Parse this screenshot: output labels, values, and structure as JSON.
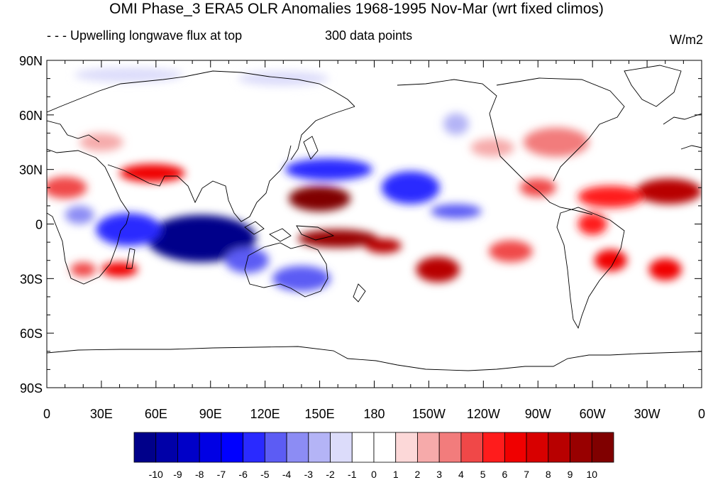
{
  "title": "OMI Phase_3 ERA5 OLR Anomalies 1968-1995 Nov-Mar (wrt fixed climos)",
  "left_subtitle": "- - - Upwelling longwave flux at top",
  "center_subtitle": "300 data points",
  "units": "W/m2",
  "lat_labels": [
    "90N",
    "60N",
    "30N",
    "0",
    "30S",
    "60S",
    "90S"
  ],
  "lon_labels": [
    "0",
    "30E",
    "60E",
    "90E",
    "120E",
    "150E",
    "180",
    "150W",
    "120W",
    "90W",
    "60W",
    "30W",
    "0"
  ],
  "colorbar_labels": [
    "-10",
    "-9",
    "-8",
    "-7",
    "-6",
    "-5",
    "-4",
    "-3",
    "-2",
    "-1",
    "0",
    "1",
    "2",
    "3",
    "4",
    "5",
    "6",
    "7",
    "8",
    "9",
    "10"
  ],
  "colorbar_colors": [
    "#00008a",
    "#0000a8",
    "#0000c8",
    "#0000e4",
    "#0000ff",
    "#2a2aff",
    "#5c5cf4",
    "#8c8cf4",
    "#b4b4f6",
    "#dcdcfa",
    "#ffffff",
    "#ffffff",
    "#fcd8d8",
    "#f6aaaa",
    "#f27c7c",
    "#f04848",
    "#ff1c1c",
    "#f00000",
    "#d80000",
    "#b80000",
    "#980000",
    "#800000"
  ],
  "map": {
    "lon_range": [
      0,
      360
    ],
    "lat_range": [
      -90,
      90
    ],
    "anomaly_regions": [
      {
        "name": "indian-ocean-negative",
        "lon": 85,
        "lat": -8,
        "rlon": 30,
        "rlat": 13,
        "value": -10
      },
      {
        "name": "west-indian-negative",
        "lon": 45,
        "lat": -3,
        "rlon": 18,
        "rlat": 9,
        "value": -6
      },
      {
        "name": "east-africa-negative",
        "lon": 18,
        "lat": 5,
        "rlon": 8,
        "rlat": 5,
        "value": -4
      },
      {
        "name": "south-indian-negative",
        "lon": 110,
        "lat": -20,
        "rlon": 12,
        "rlat": 7,
        "value": -5
      },
      {
        "name": "australia-negative",
        "lon": 140,
        "lat": -30,
        "rlon": 16,
        "rlat": 7,
        "value": -5
      },
      {
        "name": "pacific-negative-west",
        "lon": 155,
        "lat": 30,
        "rlon": 24,
        "rlat": 6,
        "value": -6
      },
      {
        "name": "pacific-negative-east",
        "lon": 200,
        "lat": 20,
        "rlon": 16,
        "rlat": 9,
        "value": -6
      },
      {
        "name": "pacific-negative-tail",
        "lon": 225,
        "lat": 7,
        "rlon": 14,
        "rlat": 4,
        "value": -5
      },
      {
        "name": "north-pacific-negative",
        "lon": 225,
        "lat": 55,
        "rlon": 7,
        "rlat": 6,
        "value": -3
      },
      {
        "name": "arctic-negative-1",
        "lon": 45,
        "lat": 82,
        "rlon": 30,
        "rlat": 4,
        "value": -2
      },
      {
        "name": "arctic-negative-2",
        "lon": 130,
        "lat": 80,
        "rlon": 25,
        "rlat": 4,
        "value": -2
      },
      {
        "name": "siberia-negative",
        "lon": 115,
        "lat": 62,
        "rlon": 20,
        "rlat": 6,
        "value": -1
      },
      {
        "name": "southern-ocean-negative",
        "lon": 150,
        "lat": -63,
        "rlon": 30,
        "rlat": 4,
        "value": -1
      },
      {
        "name": "west-pacific-positive",
        "lon": 150,
        "lat": 14,
        "rlon": 17,
        "rlat": 7,
        "value": 10
      },
      {
        "name": "maritime-positive",
        "lon": 160,
        "lat": -8,
        "rlon": 22,
        "rlat": 5,
        "value": 9
      },
      {
        "name": "date-line-positive",
        "lon": 185,
        "lat": -12,
        "rlon": 10,
        "rlat": 4,
        "value": 8
      },
      {
        "name": "south-pacific-positive",
        "lon": 215,
        "lat": -25,
        "rlon": 12,
        "rlat": 7,
        "value": 8
      },
      {
        "name": "arabia-positive",
        "lon": 58,
        "lat": 28,
        "rlon": 18,
        "rlat": 5,
        "value": 6
      },
      {
        "name": "sahara-positive",
        "lon": 10,
        "lat": 20,
        "rlon": 12,
        "rlat": 6,
        "value": 4
      },
      {
        "name": "madagascar-positive",
        "lon": 40,
        "lat": -25,
        "rlon": 10,
        "rlat": 4,
        "value": 6
      },
      {
        "name": "south-africa-positive",
        "lon": 20,
        "lat": -25,
        "rlon": 7,
        "rlat": 4,
        "value": 4
      },
      {
        "name": "south-atlantic-positive",
        "lon": 340,
        "lat": -25,
        "rlon": 9,
        "rlat": 6,
        "value": 6
      },
      {
        "name": "north-atlantic-positive",
        "lon": 342,
        "lat": 18,
        "rlon": 18,
        "rlat": 7,
        "value": 8
      },
      {
        "name": "north-atlantic-band",
        "lon": 310,
        "lat": 15,
        "rlon": 18,
        "rlat": 6,
        "value": 5
      },
      {
        "name": "amazon-positive",
        "lon": 300,
        "lat": 0,
        "rlon": 8,
        "rlat": 6,
        "value": 5
      },
      {
        "name": "brazil-positive",
        "lon": 310,
        "lat": -20,
        "rlon": 9,
        "rlat": 6,
        "value": 6
      },
      {
        "name": "east-pacific-positive",
        "lon": 255,
        "lat": -15,
        "rlon": 12,
        "rlat": 6,
        "value": 4
      },
      {
        "name": "north-america-positive",
        "lon": 280,
        "lat": 45,
        "rlon": 18,
        "rlat": 8,
        "value": 3
      },
      {
        "name": "europe-positive",
        "lon": 30,
        "lat": 45,
        "rlon": 12,
        "rlat": 5,
        "value": 2
      },
      {
        "name": "central-america-positive",
        "lon": 270,
        "lat": 20,
        "rlon": 10,
        "rlat": 5,
        "value": 4
      },
      {
        "name": "north-pacific-positive",
        "lon": 245,
        "lat": 42,
        "rlon": 12,
        "rlat": 5,
        "value": 2
      }
    ]
  }
}
